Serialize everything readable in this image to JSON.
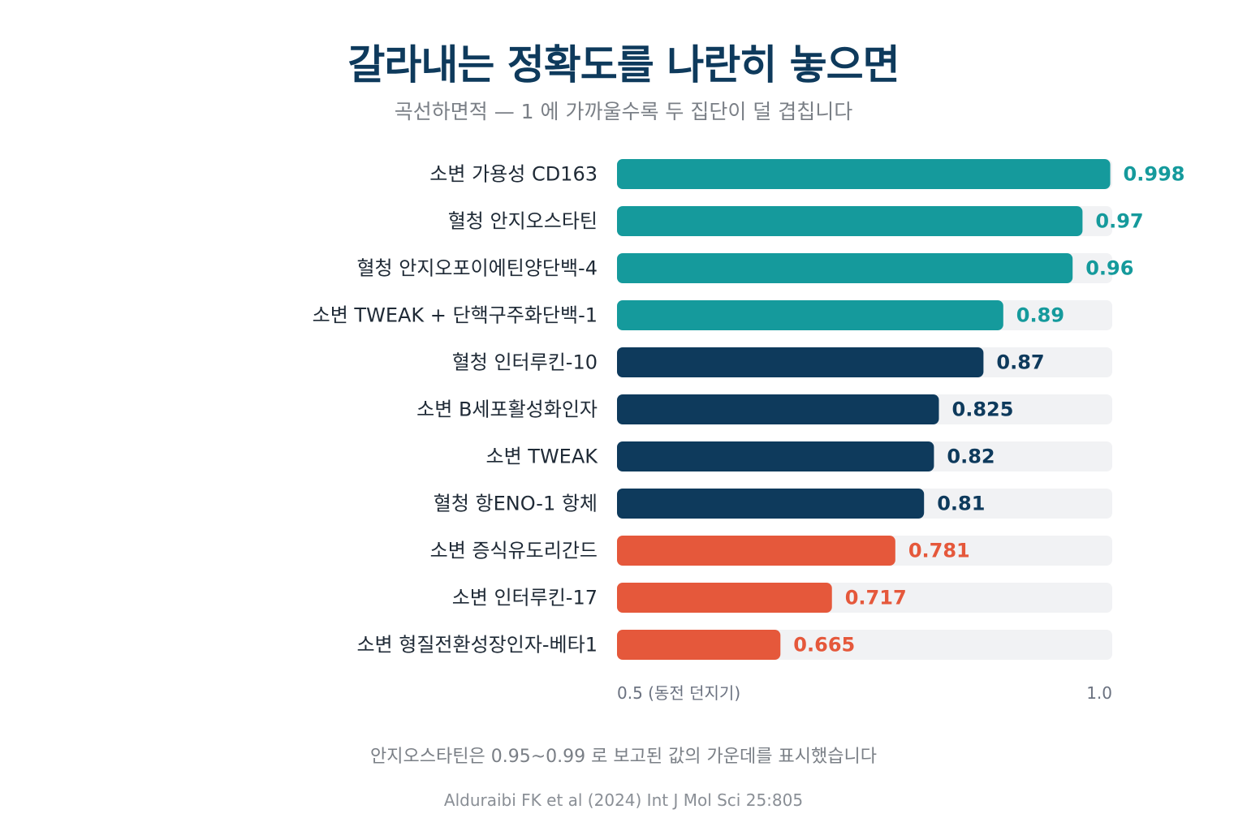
{
  "title": "갈라내는 정확도를 나란히 놓으면",
  "subtitle": "곡선하면적 — 1 에 가까울수록 두 집단이 덜 겹칩니다",
  "note": "안지오스타틴은 0.95~0.99 로 보고된 값의 가운데를 표시했습니다",
  "source": "Alduraibi FK et al (2024) Int J Mol Sci 25:805",
  "colors": {
    "teal": "#159a9c",
    "navy": "#0e3a5c",
    "orange": "#e5583b",
    "track": "#f1f2f4",
    "label": "#1f2a36",
    "axis": "#6b7280"
  },
  "chart_data": {
    "type": "bar",
    "orientation": "horizontal",
    "xlim": [
      0.5,
      1.0
    ],
    "x_tick_labels": [
      "0.5 (동전 던지기)",
      "1.0"
    ],
    "categories": [
      "소변 가용성 CD163",
      "혈청 안지오스타틴",
      "혈청 안지오포이에틴양단백-4",
      "소변 TWEAK + 단핵구주화단백-1",
      "혈청 인터루킨-10",
      "소변 B세포활성화인자",
      "소변 TWEAK",
      "혈청 항ENO-1 항체",
      "소변 증식유도리간드",
      "소변 인터루킨-17",
      "소변 형질전환성장인자-베타1"
    ],
    "values": [
      0.998,
      0.97,
      0.96,
      0.89,
      0.87,
      0.825,
      0.82,
      0.81,
      0.781,
      0.717,
      0.665
    ],
    "value_labels": [
      "0.998",
      "0.97",
      "0.96",
      "0.89",
      "0.87",
      "0.825",
      "0.82",
      "0.81",
      "0.781",
      "0.717",
      "0.665"
    ],
    "bar_colors": [
      "teal",
      "teal",
      "teal",
      "teal",
      "navy",
      "navy",
      "navy",
      "navy",
      "orange",
      "orange",
      "orange"
    ]
  }
}
